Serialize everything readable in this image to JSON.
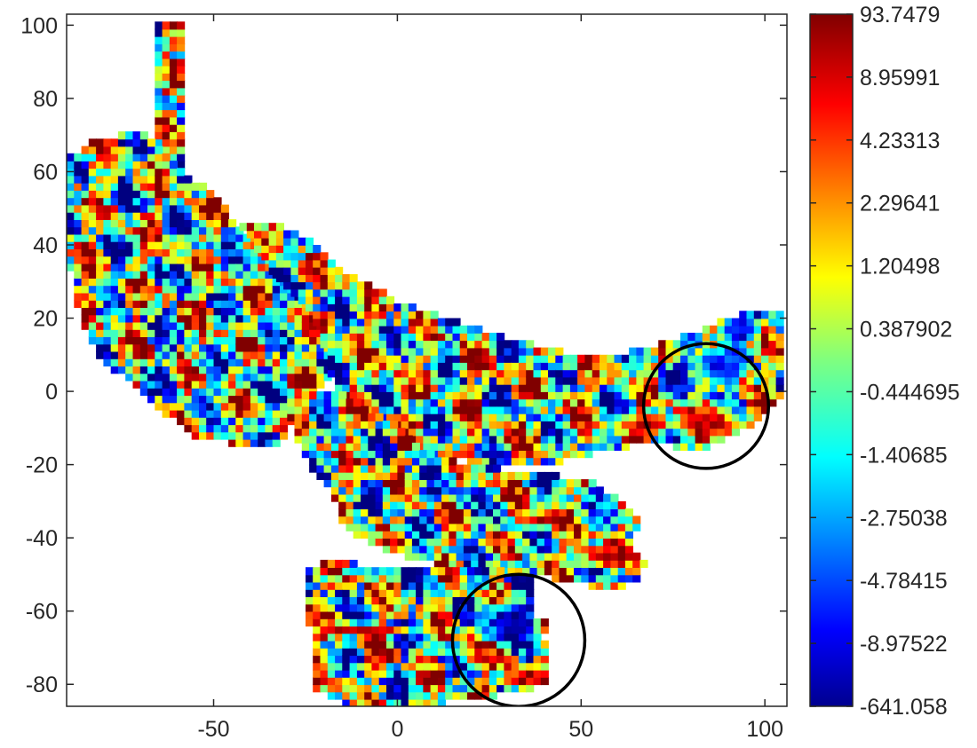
{
  "chart_data": {
    "type": "heatmap",
    "title": "",
    "xlabel": "",
    "ylabel": "",
    "xlim": [
      -90,
      106
    ],
    "ylim": [
      -86,
      103
    ],
    "x_ticks": [
      -50,
      0,
      50,
      100
    ],
    "y_ticks": [
      100,
      80,
      60,
      40,
      20,
      0,
      -20,
      -40,
      -60,
      -80
    ],
    "grid": false,
    "colormap": "jet",
    "colorbar": {
      "position": "right",
      "ticks": [
        "93.7479",
        "8.95991",
        "4.23313",
        "2.29641",
        "1.20498",
        "0.387902",
        "-0.444695",
        "-1.40685",
        "-2.75038",
        "-4.78415",
        "-8.97522",
        "-641.058"
      ]
    },
    "annotations": [
      {
        "type": "circle",
        "center": [
          84,
          -4
        ],
        "radius": 17
      },
      {
        "type": "circle",
        "center": [
          33,
          -68
        ],
        "radius": 18
      }
    ],
    "regions": [
      {
        "name": "vertical-strip",
        "polygon": [
          [
            -66,
            102
          ],
          [
            -59,
            102
          ],
          [
            -58,
            65
          ],
          [
            -57,
            57
          ],
          [
            -63,
            57
          ],
          [
            -66,
            60
          ]
        ]
      },
      {
        "name": "upper-left-block",
        "polygon": [
          [
            -90,
            64
          ],
          [
            -83,
            68
          ],
          [
            -70,
            72
          ],
          [
            -62,
            64
          ],
          [
            -55,
            58
          ],
          [
            -51,
            56
          ],
          [
            -46,
            49
          ],
          [
            -44,
            46
          ],
          [
            -40,
            43
          ],
          [
            -36,
            40
          ],
          [
            -34,
            36
          ],
          [
            -31,
            34
          ],
          [
            -28,
            31
          ],
          [
            -25,
            28
          ],
          [
            -22,
            24
          ],
          [
            -19,
            18
          ],
          [
            -16,
            14
          ],
          [
            -19,
            2
          ],
          [
            -28,
            -6
          ],
          [
            -30,
            -12
          ],
          [
            -32,
            -15
          ],
          [
            -40,
            -15
          ],
          [
            -56,
            -12
          ],
          [
            -70,
            0
          ],
          [
            -82,
            10
          ],
          [
            -88,
            25
          ],
          [
            -90,
            40
          ]
        ]
      },
      {
        "name": "big-middle-band",
        "polygon": [
          [
            -43,
            46
          ],
          [
            -35,
            47
          ],
          [
            -26,
            43
          ],
          [
            -14,
            33
          ],
          [
            0,
            25
          ],
          [
            25,
            16
          ],
          [
            48,
            10
          ],
          [
            64,
            11
          ],
          [
            80,
            16
          ],
          [
            96,
            22
          ],
          [
            106,
            23
          ],
          [
            106,
            0
          ],
          [
            96,
            -10
          ],
          [
            84,
            -16
          ],
          [
            68,
            -14
          ],
          [
            58,
            -16
          ],
          [
            42,
            -20
          ],
          [
            26,
            -20
          ],
          [
            12,
            -18
          ],
          [
            0,
            -14
          ],
          [
            -8,
            -8
          ],
          [
            -14,
            -2
          ],
          [
            -18,
            4
          ],
          [
            -20,
            12
          ],
          [
            -22,
            18
          ],
          [
            -25,
            24
          ],
          [
            -30,
            28
          ],
          [
            -34,
            32
          ],
          [
            -36,
            36
          ],
          [
            -40,
            42
          ]
        ]
      },
      {
        "name": "diagonal-band",
        "polygon": [
          [
            -30,
            -2
          ],
          [
            -18,
            1
          ],
          [
            -12,
            -2
          ],
          [
            -2,
            -8
          ],
          [
            8,
            -16
          ],
          [
            20,
            -20
          ],
          [
            38,
            -22
          ],
          [
            52,
            -24
          ],
          [
            62,
            -30
          ],
          [
            66,
            -36
          ],
          [
            64,
            -42
          ],
          [
            68,
            -46
          ],
          [
            65,
            -52
          ],
          [
            58,
            -54
          ],
          [
            48,
            -52
          ],
          [
            35,
            -50
          ],
          [
            20,
            -50
          ],
          [
            6,
            -46
          ],
          [
            -6,
            -42
          ],
          [
            -14,
            -38
          ],
          [
            -16,
            -32
          ],
          [
            -19,
            -26
          ],
          [
            -24,
            -20
          ],
          [
            -28,
            -12
          ]
        ]
      },
      {
        "name": "bottom-block",
        "polygon": [
          [
            -25,
            -48
          ],
          [
            -18,
            -46
          ],
          [
            -10,
            -47
          ],
          [
            0,
            -48
          ],
          [
            12,
            -48
          ],
          [
            22,
            -48
          ],
          [
            30,
            -49
          ],
          [
            37,
            -50
          ],
          [
            38,
            -58
          ],
          [
            36,
            -62
          ],
          [
            42,
            -62
          ],
          [
            41,
            -66
          ],
          [
            38,
            -66
          ],
          [
            42,
            -70
          ],
          [
            40,
            -74
          ],
          [
            42,
            -77
          ],
          [
            40,
            -80
          ],
          [
            36,
            -82
          ],
          [
            20,
            -84
          ],
          [
            5,
            -86
          ],
          [
            -12,
            -86
          ],
          [
            -22,
            -82
          ],
          [
            -23,
            -70
          ],
          [
            -25,
            -58
          ]
        ]
      }
    ],
    "hotspots": [
      {
        "center": [
          84,
          -9
        ],
        "rx": 12,
        "ry": 6,
        "value": "high"
      },
      {
        "center": [
          68,
          -10
        ],
        "rx": 7,
        "ry": 4,
        "value": "high"
      },
      {
        "center": [
          86,
          6
        ],
        "rx": 9,
        "ry": 6,
        "value": "low"
      },
      {
        "center": [
          92,
          16
        ],
        "rx": 8,
        "ry": 5,
        "value": "low"
      },
      {
        "center": [
          30,
          -64
        ],
        "rx": 9,
        "ry": 8,
        "value": "very-low"
      },
      {
        "center": [
          33,
          -79
        ],
        "rx": 7,
        "ry": 4,
        "value": "high"
      },
      {
        "center": [
          22,
          -74
        ],
        "rx": 6,
        "ry": 3,
        "value": "high"
      },
      {
        "center": [
          55,
          -46
        ],
        "rx": 9,
        "ry": 4,
        "value": "high"
      },
      {
        "center": [
          38,
          -36
        ],
        "rx": 9,
        "ry": 3,
        "value": "high"
      },
      {
        "center": [
          -22,
          18
        ],
        "rx": 6,
        "ry": 4,
        "value": "high"
      },
      {
        "center": [
          -10,
          -66
        ],
        "rx": 18,
        "ry": 2,
        "value": "high"
      }
    ]
  }
}
